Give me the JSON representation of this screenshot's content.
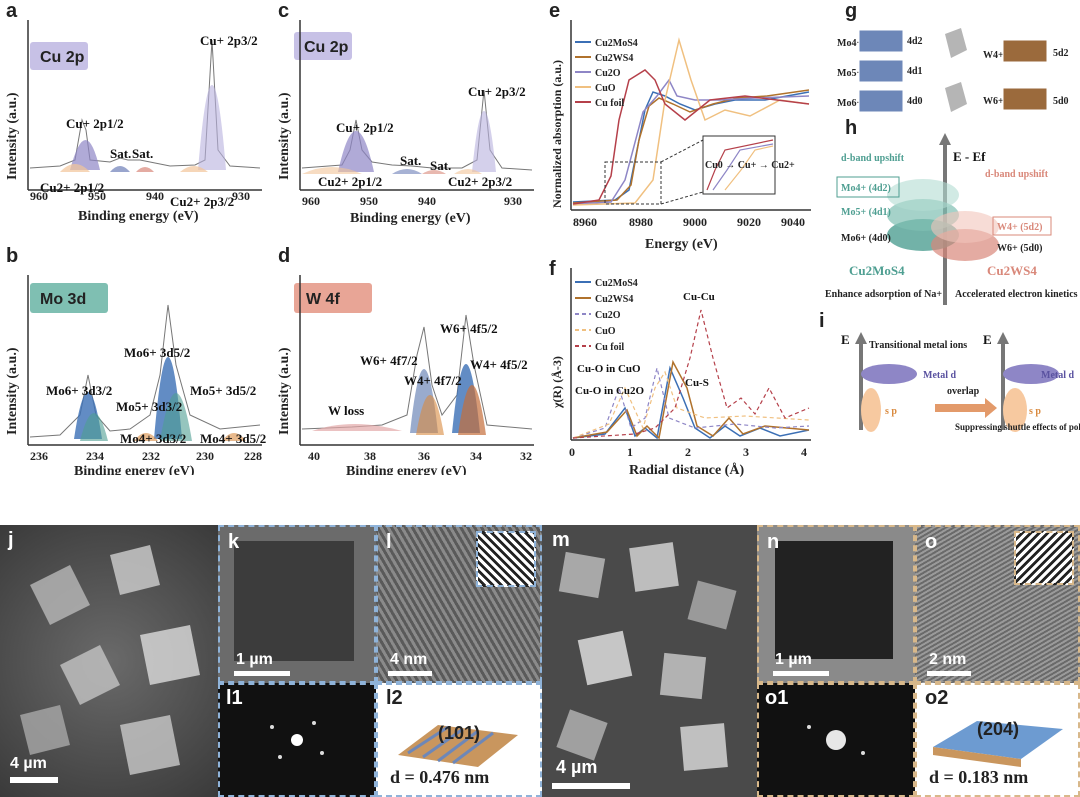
{
  "panels": {
    "a": {
      "label": "a",
      "tag": "Cu 2p",
      "xlabel": "Binding energy (eV)",
      "ylabel": "Intensity (a.u.)",
      "ticks": [
        "960",
        "950",
        "940",
        "930"
      ],
      "annotations": {
        "cu1_32": "Cu+ 2p3/2",
        "cu1_12": "Cu+ 2p1/2",
        "sat1": "Sat.",
        "sat2": "Sat.",
        "cu2_12": "Cu2+ 2p1/2",
        "cu2_32": "Cu2+ 2p3/2"
      }
    },
    "b": {
      "label": "b",
      "tag": "Mo 3d",
      "xlabel": "Binding energy (eV)",
      "ylabel": "Intensity (a.u.)",
      "ticks": [
        "236",
        "234",
        "232",
        "230",
        "228"
      ],
      "annotations": {
        "mo6_52": "Mo6+ 3d5/2",
        "mo6_32": "Mo6+ 3d3/2",
        "mo5_52": "Mo5+ 3d5/2",
        "mo5_32": "Mo5+ 3d3/2",
        "mo4_32": "Mo4+ 3d3/2",
        "mo4_52": "Mo4+ 3d5/2"
      }
    },
    "c": {
      "label": "c",
      "tag": "Cu 2p",
      "xlabel": "Binding energy (eV)",
      "ylabel": "Intensity (a.u.)",
      "ticks": [
        "960",
        "950",
        "940",
        "930"
      ],
      "annotations": {
        "cu1_32": "Cu+ 2p3/2",
        "cu1_12": "Cu+ 2p1/2",
        "sat1": "Sat.",
        "sat2": "Sat.",
        "cu2_12": "Cu2+ 2p1/2",
        "cu2_32": "Cu2+ 2p3/2"
      }
    },
    "d": {
      "label": "d",
      "tag": "W 4f",
      "xlabel": "Binding energy (eV)",
      "ylabel": "Intensity (a.u.)",
      "ticks": [
        "40",
        "38",
        "36",
        "34",
        "32"
      ],
      "annotations": {
        "w6_52": "W6+ 4f5/2",
        "w6_72": "W6+ 4f7/2",
        "w4_52": "W4+ 4f5/2",
        "w4_72": "W4+ 4f7/2",
        "wloss": "W loss"
      }
    },
    "e": {
      "label": "e",
      "xlabel": "Energy (eV)",
      "ylabel": "Normalized absorption (a.u.)",
      "ticks": [
        "8960",
        "8980",
        "9000",
        "9020",
        "9040"
      ],
      "legend": [
        "Cu2MoS4",
        "Cu2WS4",
        "Cu2O",
        "CuO",
        "Cu foil"
      ],
      "inset": "Cu0 → Cu+ → Cu2+"
    },
    "f": {
      "label": "f",
      "xlabel": "Radial distance (Å)",
      "ylabel": "χ(R) (Å-3)",
      "ticks": [
        "0",
        "1",
        "2",
        "3",
        "4"
      ],
      "legend": [
        "Cu2MoS4",
        "Cu2WS4",
        "Cu2O",
        "CuO",
        "Cu foil"
      ],
      "annotations": {
        "cucu": "Cu-Cu",
        "cuo_cuo": "Cu-O in CuO",
        "cuo_cu2o": "Cu-O in Cu2O",
        "cus": "Cu-S"
      }
    },
    "g": {
      "label": "g",
      "mo4": "Mo4+",
      "mo5": "Mo5+",
      "mo6": "Mo6+",
      "d42": "4d2",
      "d41": "4d1",
      "d40": "4d0",
      "w4": "W4+",
      "w6": "W6+",
      "d52": "5d2",
      "d50": "5d0"
    },
    "h": {
      "label": "h",
      "axis": "E - Ef",
      "dband_left": "d-band upshift",
      "dband_right": "d-band upshift",
      "mo4": "Mo4+ (4d2)",
      "mo5": "Mo5+ (4d1)",
      "mo6": "Mo6+ (4d0)",
      "w4": "W4+ (5d2)",
      "w6": "W6+ (5d0)",
      "left_material": "Cu2MoS4",
      "right_material": "Cu2WS4",
      "left_caption": "Enhance adsorption of Na+",
      "right_caption": "Accelerated electron kinetics"
    },
    "i": {
      "label": "i",
      "e1": "E",
      "e2": "E",
      "transitional": "Transitional metal ions",
      "metal_d1": "Metal d",
      "metal_d2": "Metal d",
      "sp1": "s p",
      "sp2": "s p",
      "overlap": "overlap",
      "suppress": "Suppressing shuttle effects of polysulfides"
    },
    "j": {
      "label": "j",
      "scale": "4 µm"
    },
    "k": {
      "label": "k",
      "scale": "1 µm"
    },
    "l": {
      "label": "l",
      "scale": "4 nm"
    },
    "l1": {
      "label": "l1"
    },
    "l2": {
      "label": "l2",
      "plane": "(101)",
      "dspacing": "d = 0.476 nm"
    },
    "m": {
      "label": "m",
      "scale": "4 µm"
    },
    "n": {
      "label": "n",
      "scale": "1 µm"
    },
    "o": {
      "label": "o",
      "scale": "2 nm"
    },
    "o1": {
      "label": "o1"
    },
    "o2": {
      "label": "o2",
      "plane": "(204)",
      "dspacing": "d = 0.183 nm"
    }
  },
  "colors": {
    "purple": "#8e86c6",
    "teal": "#4f9f92",
    "salmon": "#d9887a",
    "blue": "#3a5f9a",
    "orange": "#d98a3f",
    "cu2mos4": "#3b6fb5",
    "cu2ws4": "#b0722c",
    "cu2o": "#8e86c6",
    "cuo": "#f0c080",
    "cufoil": "#b5404a"
  }
}
